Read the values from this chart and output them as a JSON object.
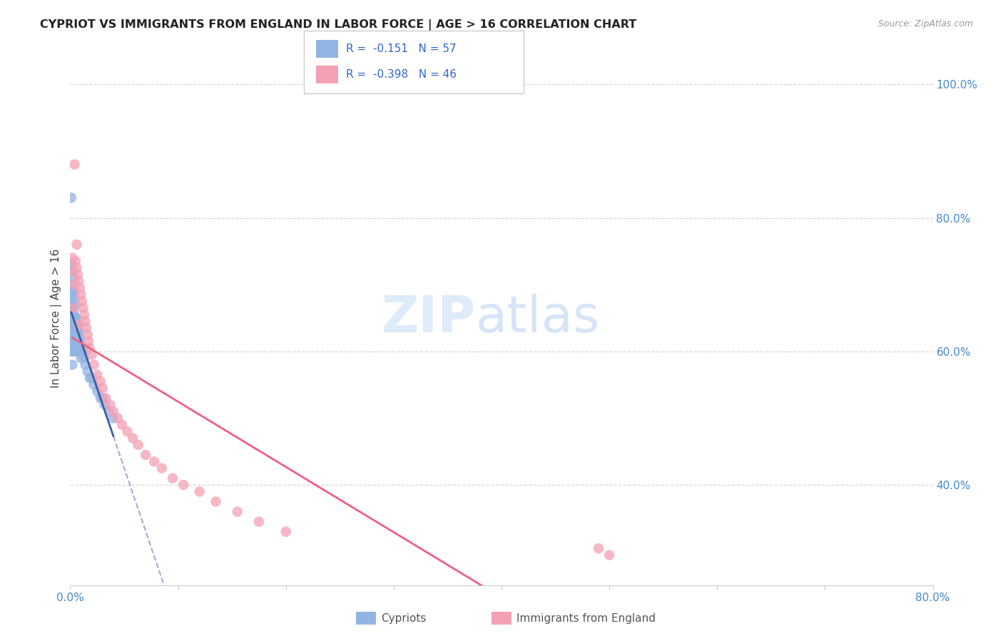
{
  "title": "CYPRIOT VS IMMIGRANTS FROM ENGLAND IN LABOR FORCE | AGE > 16 CORRELATION CHART",
  "source": "Source: ZipAtlas.com",
  "ylabel": "In Labor Force | Age > 16",
  "xlim": [
    0.0,
    0.8
  ],
  "ylim": [
    0.25,
    1.05
  ],
  "xtick_vals": [
    0.0,
    0.1,
    0.2,
    0.3,
    0.4,
    0.5,
    0.6,
    0.7,
    0.8
  ],
  "xtick_labels": [
    "0.0%",
    "",
    "",
    "",
    "",
    "",
    "",
    "",
    "80.0%"
  ],
  "ytick_vals_right": [
    0.4,
    0.6,
    0.8,
    1.0
  ],
  "ytick_labels_right": [
    "40.0%",
    "60.0%",
    "80.0%",
    "100.0%"
  ],
  "cypriot_R": -0.151,
  "cypriot_N": 57,
  "england_R": -0.398,
  "england_N": 46,
  "cypriot_color": "#92b4e3",
  "england_color": "#f4a0b5",
  "cypriot_line_color": "#3a5fa0",
  "england_line_color": "#f06080",
  "cypriot_scatter_x": [
    0.001,
    0.001,
    0.001,
    0.001,
    0.001,
    0.002,
    0.002,
    0.002,
    0.002,
    0.002,
    0.002,
    0.003,
    0.003,
    0.003,
    0.003,
    0.004,
    0.004,
    0.004,
    0.005,
    0.005,
    0.005,
    0.006,
    0.006,
    0.007,
    0.007,
    0.008,
    0.008,
    0.009,
    0.01,
    0.01,
    0.011,
    0.012,
    0.013,
    0.014,
    0.016,
    0.018,
    0.02,
    0.022,
    0.025,
    0.028,
    0.03,
    0.032,
    0.036,
    0.04,
    0.001,
    0.001,
    0.002,
    0.002,
    0.002,
    0.003,
    0.003,
    0.004,
    0.005,
    0.005,
    0.006,
    0.007,
    0.008
  ],
  "cypriot_scatter_y": [
    0.68,
    0.66,
    0.64,
    0.62,
    0.6,
    0.67,
    0.65,
    0.63,
    0.61,
    0.6,
    0.58,
    0.66,
    0.64,
    0.62,
    0.6,
    0.65,
    0.63,
    0.61,
    0.64,
    0.62,
    0.6,
    0.63,
    0.61,
    0.63,
    0.61,
    0.62,
    0.6,
    0.62,
    0.61,
    0.59,
    0.6,
    0.6,
    0.59,
    0.58,
    0.57,
    0.56,
    0.56,
    0.55,
    0.54,
    0.53,
    0.53,
    0.52,
    0.51,
    0.5,
    0.83,
    0.73,
    0.72,
    0.7,
    0.69,
    0.71,
    0.69,
    0.68,
    0.67,
    0.65,
    0.65,
    0.64,
    0.63
  ],
  "england_scatter_x": [
    0.002,
    0.003,
    0.004,
    0.005,
    0.006,
    0.007,
    0.008,
    0.009,
    0.01,
    0.011,
    0.012,
    0.013,
    0.014,
    0.015,
    0.016,
    0.017,
    0.018,
    0.02,
    0.022,
    0.025,
    0.028,
    0.03,
    0.033,
    0.037,
    0.04,
    0.044,
    0.048,
    0.053,
    0.058,
    0.063,
    0.07,
    0.078,
    0.085,
    0.095,
    0.105,
    0.12,
    0.135,
    0.155,
    0.175,
    0.2,
    0.004,
    0.006,
    0.5,
    0.49,
    0.003,
    0.008
  ],
  "england_scatter_y": [
    0.74,
    0.72,
    0.7,
    0.735,
    0.725,
    0.715,
    0.705,
    0.695,
    0.685,
    0.675,
    0.665,
    0.655,
    0.645,
    0.635,
    0.625,
    0.615,
    0.605,
    0.595,
    0.58,
    0.565,
    0.555,
    0.545,
    0.53,
    0.52,
    0.51,
    0.5,
    0.49,
    0.48,
    0.47,
    0.46,
    0.445,
    0.435,
    0.425,
    0.41,
    0.4,
    0.39,
    0.375,
    0.36,
    0.345,
    0.33,
    0.88,
    0.76,
    0.295,
    0.305,
    0.665,
    0.64
  ],
  "watermark_zip": "ZIP",
  "watermark_atlas": "atlas",
  "background_color": "#ffffff",
  "grid_color": "#cccccc"
}
